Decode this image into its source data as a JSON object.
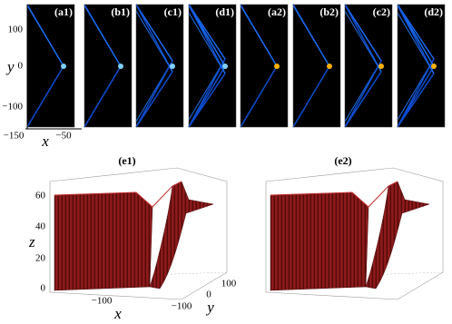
{
  "panels": [
    {
      "label": "(a1)"
    },
    {
      "label": "(b1)"
    },
    {
      "label": "(c1)"
    },
    {
      "label": "(d1)"
    },
    {
      "label": "(a2)"
    },
    {
      "label": "(b2)"
    },
    {
      "label": "(c2)"
    },
    {
      "label": "(d2)"
    }
  ],
  "top_axes": {
    "y_label": "y",
    "x_label": "x",
    "y_ticks": [
      "100",
      "0",
      "−100"
    ],
    "x_ticks": [
      "−150",
      "−50"
    ]
  },
  "plots_3d": [
    {
      "label": "(e1)",
      "z_label": "z",
      "x_label": "x",
      "y_label": "y",
      "z_ticks": [
        "60",
        "40",
        "20",
        "0"
      ],
      "x_ticks": [
        "−100"
      ],
      "y_ticks": [
        "−100",
        "0",
        "100"
      ]
    },
    {
      "label": "(e2)"
    }
  ]
}
